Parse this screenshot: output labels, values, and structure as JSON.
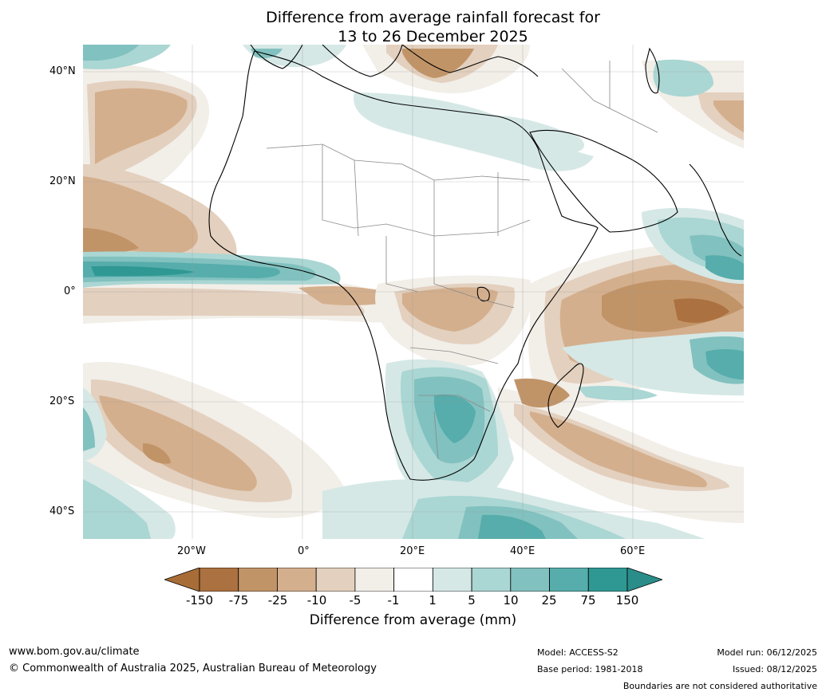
{
  "title": {
    "line1": "Difference from average rainfall forecast for",
    "line2": "13 to 26 December 2025"
  },
  "map": {
    "lat_labels": [
      "40°N",
      "20°N",
      "0°",
      "20°S",
      "40°S"
    ],
    "lon_labels": [
      "20°W",
      "0°",
      "20°E",
      "40°E",
      "60°E"
    ]
  },
  "legend": {
    "title": "Difference from average (mm)",
    "ticks": [
      "-150",
      "-75",
      "-25",
      "-10",
      "-5",
      "-1",
      "1",
      "5",
      "10",
      "25",
      "75",
      "150"
    ],
    "colors": [
      "#a86d36",
      "#ac7140",
      "#c19468",
      "#d4af8d",
      "#e3d0be",
      "#f2eee8",
      "#ffffff",
      "#d5e8e6",
      "#aad6d3",
      "#81c1bf",
      "#56adab",
      "#2f9893",
      "#2a8d89"
    ]
  },
  "footer": {
    "website": "www.bom.gov.au/climate",
    "copyright": "© Commonwealth of Australia 2025, Australian Bureau of Meteorology",
    "model": "Model: ACCESS-S2",
    "base_period": "Base period: 1981-2018",
    "model_run": "Model run: 06/12/2025",
    "issued": "Issued: 08/12/2025",
    "disclaimer": "Boundaries are not considered authoritative"
  }
}
